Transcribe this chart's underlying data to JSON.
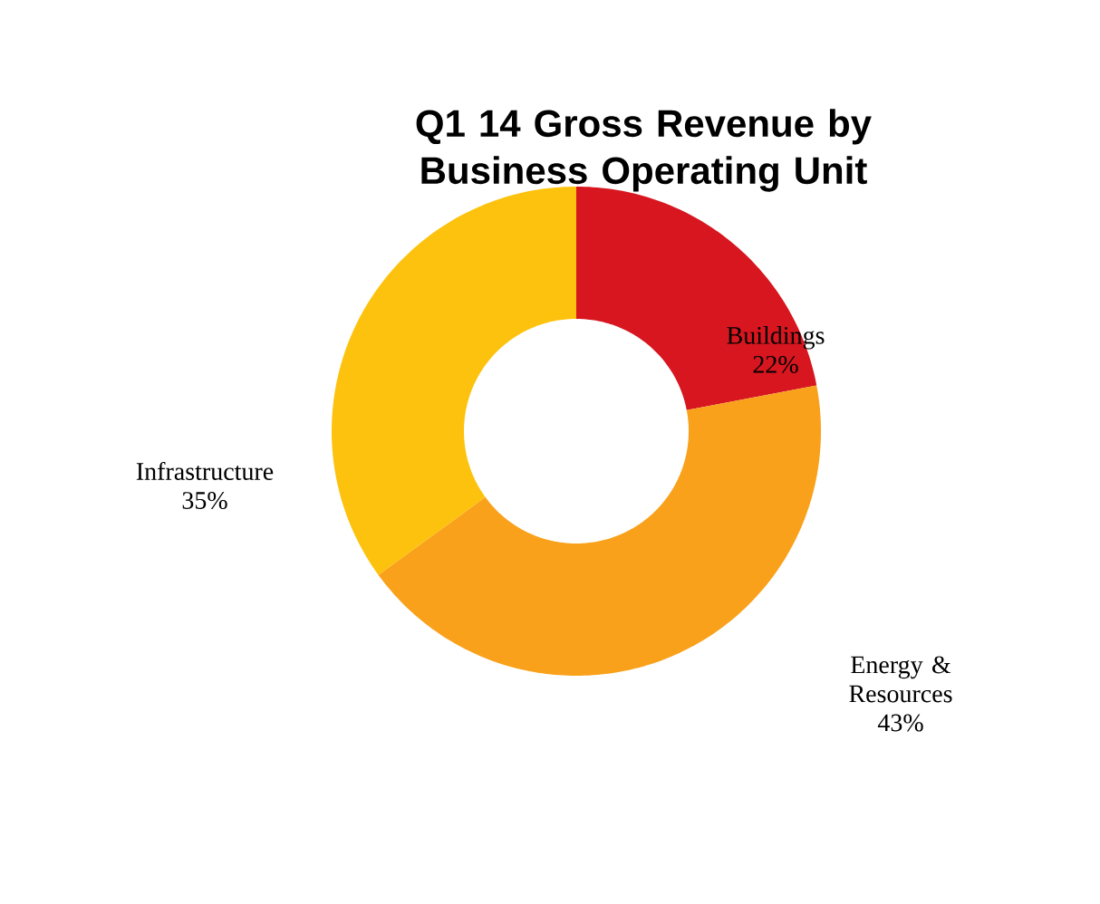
{
  "chart_data": {
    "type": "donut",
    "title": "Q1 14 Gross Revenue by Business Operating Unit",
    "categories": [
      "Buildings",
      "Energy & Resources",
      "Infrastructure"
    ],
    "values": [
      22,
      43,
      35
    ],
    "value_labels": [
      "22%",
      "43%",
      "35%"
    ],
    "colors": [
      "#d7161f",
      "#f9a11b",
      "#fdc20d"
    ]
  }
}
